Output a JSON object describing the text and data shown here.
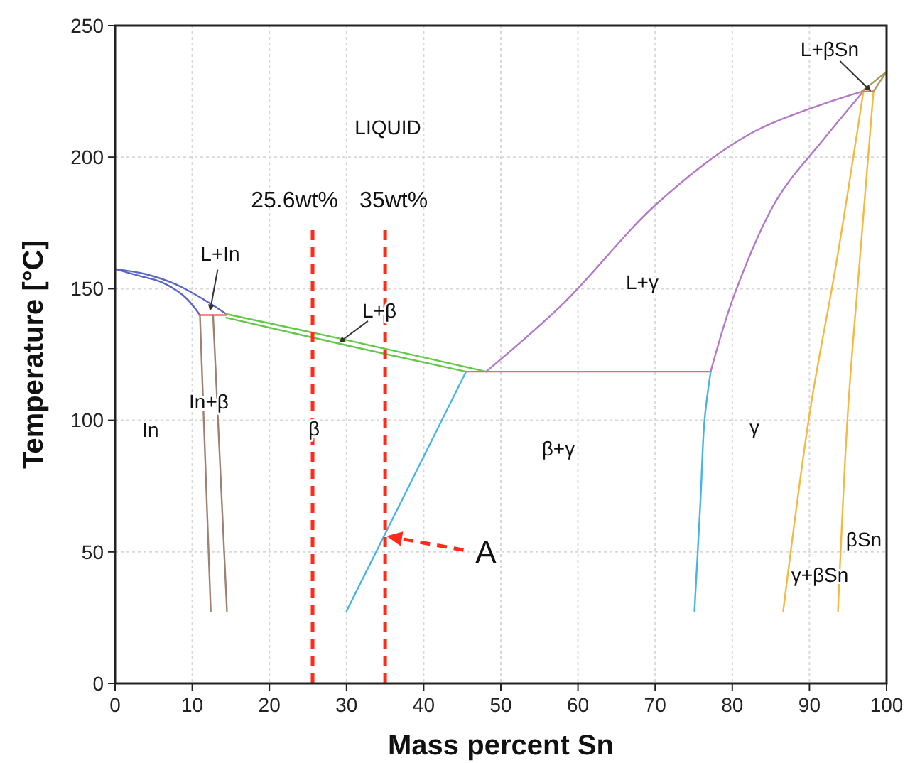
{
  "chart_data": {
    "type": "line",
    "xlabel": "Mass percent Sn",
    "ylabel": "Temperature [°C]",
    "xlim": [
      0,
      100
    ],
    "ylim": [
      0,
      250
    ],
    "xticks": [
      0,
      10,
      20,
      30,
      40,
      50,
      60,
      70,
      80,
      90,
      100
    ],
    "yticks": [
      0,
      50,
      100,
      150,
      200,
      250
    ],
    "grid": true,
    "marker": "none",
    "line_style": "solid",
    "series": [
      {
        "color": "#5a66c4",
        "x": [
          0,
          3,
          6,
          9,
          11
        ],
        "values": [
          157.5,
          155,
          152.5,
          147,
          140
        ]
      },
      {
        "color": "#5a66c4",
        "x": [
          0,
          4,
          8,
          12,
          14.4
        ],
        "values": [
          157.5,
          155.5,
          151.5,
          145,
          140.4
        ]
      },
      {
        "color": "#f06868",
        "x": [
          10.9,
          14.4
        ],
        "values": [
          140,
          140
        ]
      },
      {
        "color": "#a08070",
        "x": [
          11,
          12.4
        ],
        "values": [
          140,
          27.5
        ]
      },
      {
        "color": "#a08070",
        "x": [
          12.7,
          14.5
        ],
        "values": [
          140,
          27.5
        ]
      },
      {
        "color": "#66c84a",
        "x": [
          14.4,
          30,
          48.1
        ],
        "values": [
          140.4,
          130.5,
          118.5
        ]
      },
      {
        "color": "#66c84a",
        "x": [
          14.4,
          30,
          45.5
        ],
        "values": [
          139,
          128.5,
          118.5
        ]
      },
      {
        "color": "#f06868",
        "x": [
          45.5,
          77.2
        ],
        "values": [
          118.5,
          118.5
        ]
      },
      {
        "color": "#46b4e6",
        "x": [
          45.5,
          30
        ],
        "values": [
          118.5,
          27.5
        ]
      },
      {
        "color": "#b478c8",
        "x": [
          48.1,
          58.2,
          70.3,
          82.7,
          96.9
        ],
        "values": [
          118.5,
          144.7,
          182.5,
          209.5,
          225
        ]
      },
      {
        "color": "#b478c8",
        "x": [
          77.2,
          80.3,
          85.8,
          91.9,
          97
        ],
        "values": [
          118.5,
          148,
          184,
          207,
          225
        ]
      },
      {
        "color": "#46b4e6",
        "x": [
          77.2,
          76.4,
          75.9,
          75.1
        ],
        "values": [
          118.5,
          100,
          70.7,
          27.5
        ]
      },
      {
        "color": "#f5b840",
        "x": [
          97,
          93.5,
          90.1,
          86.6
        ],
        "values": [
          225,
          160,
          104,
          27.5
        ]
      },
      {
        "color": "#f5b840",
        "x": [
          98.3,
          96.5,
          95,
          93.7
        ],
        "values": [
          225,
          160,
          104,
          27.5
        ]
      },
      {
        "color": "#f06868",
        "x": [
          96.8,
          98.3
        ],
        "values": [
          225,
          225
        ]
      },
      {
        "color": "#a89858",
        "x": [
          96.8,
          100
        ],
        "values": [
          225,
          232.5
        ]
      },
      {
        "color": "#a89858",
        "x": [
          98.3,
          100
        ],
        "values": [
          225,
          232.5
        ]
      }
    ],
    "ref_lines": [
      {
        "axis": "x",
        "value": 25.6,
        "label": "25.6wt%",
        "color": "#ff2a1a",
        "line_style": "dashed"
      },
      {
        "axis": "x",
        "value": 35,
        "label": "35wt%",
        "color": "#ff2a1a",
        "line_style": "dashed"
      }
    ],
    "annotations": [
      "LIQUID",
      {
        "text": "L+In",
        "x": 12.3,
        "y": 141.5
      },
      {
        "text": "L+β",
        "x": 29,
        "y": 129.5
      },
      "In+β",
      "In",
      "β",
      "β+γ",
      "L+γ",
      "γ",
      "γ+βSn",
      "βSn",
      {
        "text": "L+βSn",
        "x": 98,
        "y": 225
      },
      {
        "text": "A",
        "x": 35.2,
        "y": 56
      }
    ]
  }
}
